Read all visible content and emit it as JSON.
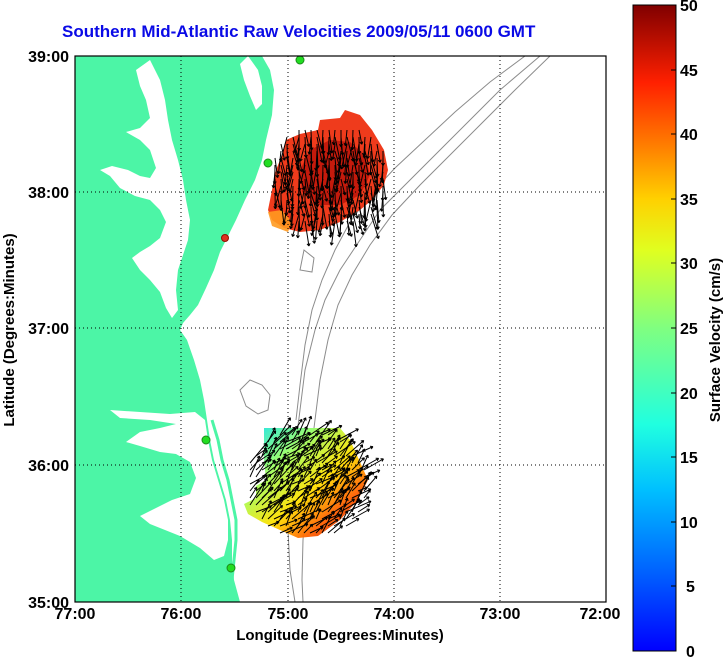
{
  "title": "Southern Mid-Atlantic Raw Velocities 2009/05/11 0600 GMT",
  "xlabel": "Longitude (Degrees:Minutes)",
  "ylabel": "Latitude (Degrees:Minutes)",
  "colorbar_label": "Surface Velocity (cm/s)",
  "x_ticks": [
    "77:00",
    "76:00",
    "75:00",
    "74:00",
    "73:00",
    "72:00"
  ],
  "y_ticks": [
    "39:00",
    "38:00",
    "37:00",
    "36:00",
    "35:00"
  ],
  "colorbar_ticks": [
    "50",
    "45",
    "40",
    "35",
    "30",
    "25",
    "20",
    "15",
    "10",
    "5",
    "0"
  ],
  "colors": {
    "land": "#4cf5a6",
    "water": "#ffffff",
    "bathymetry": "#8c8c8c",
    "grid": "#000000",
    "title": "#0a0ae6",
    "station_active": "#22dd22",
    "station_alert": "#e03020"
  },
  "extent": {
    "lon": [
      -77,
      -72
    ],
    "lat": [
      35,
      39
    ]
  },
  "colorbar_range": [
    0,
    50
  ],
  "colormap": "jet"
}
